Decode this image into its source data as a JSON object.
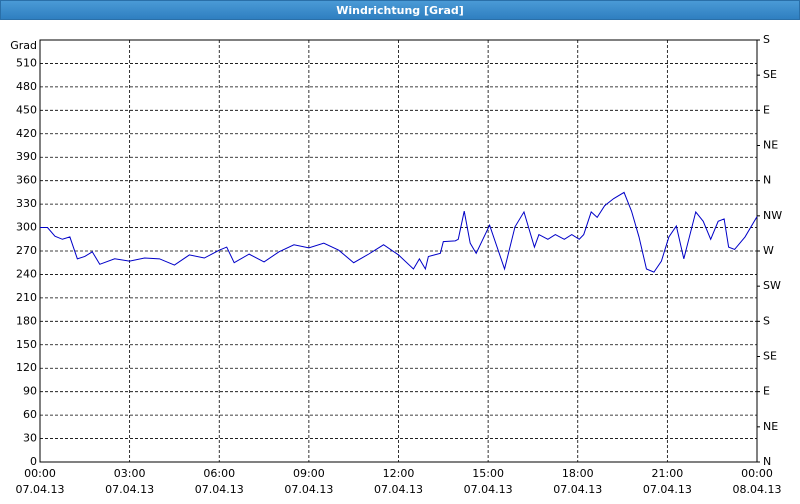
{
  "chart_data": {
    "type": "line",
    "title": "Windrichtung [Grad]",
    "y_label": "Grad",
    "x": [
      0,
      0.25,
      0.5,
      0.75,
      1,
      1.25,
      1.5,
      1.75,
      2,
      2.5,
      3,
      3.5,
      4,
      4.5,
      5,
      5.5,
      6,
      6.25,
      6.5,
      7,
      7.5,
      8,
      8.5,
      9,
      9.5,
      10,
      10.5,
      11,
      11.5,
      12,
      12.5,
      12.7,
      12.9,
      13,
      13.4,
      13.5,
      13.9,
      14,
      14.2,
      14.4,
      14.6,
      15.05,
      15.55,
      15.9,
      16.2,
      16.55,
      16.7,
      17,
      17.25,
      17.55,
      17.8,
      18.05,
      18.2,
      18.45,
      18.65,
      18.9,
      19.2,
      19.55,
      19.8,
      20.05,
      20.3,
      20.55,
      20.8,
      21.05,
      21.3,
      21.55,
      21.95,
      22.2,
      22.45,
      22.7,
      22.9,
      23.05,
      23.25,
      23.6,
      24
    ],
    "series": [
      {
        "name": "Windrichtung",
        "color": "#0000c8",
        "values": [
          300,
          300,
          289,
          285,
          288,
          260,
          263,
          269,
          253,
          260,
          257,
          261,
          260,
          252,
          265,
          261,
          271,
          275,
          255,
          266,
          256,
          269,
          278,
          274,
          280,
          271,
          255,
          266,
          278,
          265,
          247,
          260,
          247,
          263,
          267,
          282,
          283,
          285,
          321,
          280,
          267,
          303,
          247,
          301,
          320,
          275,
          291,
          285,
          291,
          285,
          291,
          285,
          291,
          320,
          313,
          328,
          337,
          345,
          321,
          288,
          247,
          243,
          257,
          288,
          302,
          260,
          320,
          308,
          285,
          308,
          311,
          275,
          272,
          288,
          314
        ]
      }
    ],
    "xlim": [
      0,
      24
    ],
    "xticks": [
      {
        "value": 0,
        "label": "00:00",
        "date": "07.04.13"
      },
      {
        "value": 3,
        "label": "03:00",
        "date": "07.04.13"
      },
      {
        "value": 6,
        "label": "06:00",
        "date": "07.04.13"
      },
      {
        "value": 9,
        "label": "09:00",
        "date": "07.04.13"
      },
      {
        "value": 12,
        "label": "12:00",
        "date": "07.04.13"
      },
      {
        "value": 15,
        "label": "15:00",
        "date": "07.04.13"
      },
      {
        "value": 18,
        "label": "18:00",
        "date": "07.04.13"
      },
      {
        "value": 21,
        "label": "21:00",
        "date": "07.04.13"
      },
      {
        "value": 24,
        "label": "00:00",
        "date": "08.04.13"
      }
    ],
    "ylim": [
      0,
      540
    ],
    "yticks": [
      0,
      30,
      60,
      90,
      120,
      150,
      180,
      210,
      240,
      270,
      300,
      330,
      360,
      390,
      420,
      450,
      480,
      510
    ],
    "y2lim": [
      0,
      540
    ],
    "y2ticks": [
      {
        "value": 0,
        "label": "N"
      },
      {
        "value": 45,
        "label": "NE"
      },
      {
        "value": 90,
        "label": "E"
      },
      {
        "value": 135,
        "label": "SE"
      },
      {
        "value": 180,
        "label": "S"
      },
      {
        "value": 225,
        "label": "SW"
      },
      {
        "value": 270,
        "label": "W"
      },
      {
        "value": 315,
        "label": "NW"
      },
      {
        "value": 360,
        "label": "N"
      },
      {
        "value": 405,
        "label": "NE"
      },
      {
        "value": 450,
        "label": "E"
      },
      {
        "value": 495,
        "label": "SE"
      },
      {
        "value": 540,
        "label": "S"
      }
    ],
    "grid": true
  }
}
